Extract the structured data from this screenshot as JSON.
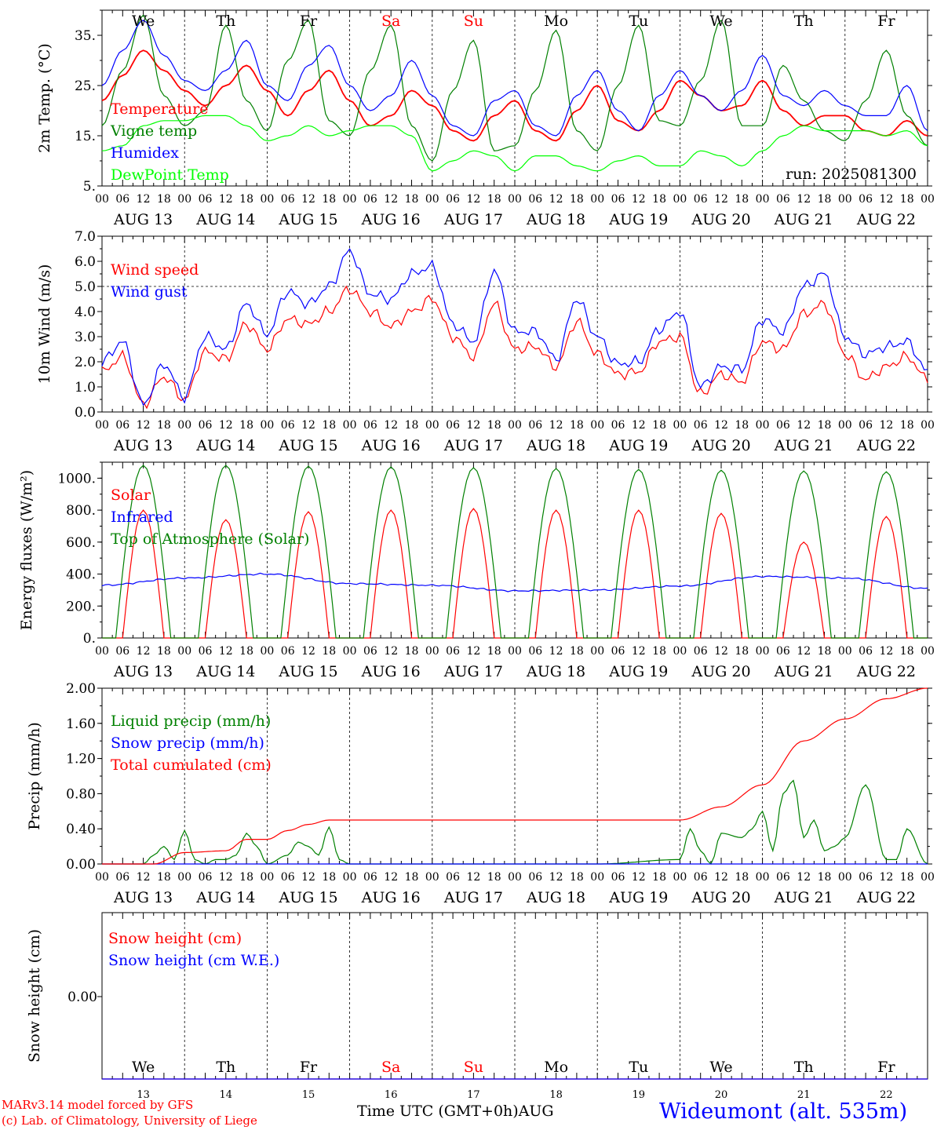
{
  "chart_data": [
    {
      "type": "line",
      "ylabel": "2m Temp. (°C)",
      "ylim": [
        5,
        40
      ],
      "yticks": [
        "5.",
        "15.",
        "25.",
        "35."
      ],
      "grid": "vertical dashed day lines",
      "legend": "left, inside plot",
      "annotation": "run: 2025081300",
      "x": [
        0,
        6,
        12,
        18,
        24,
        30,
        36,
        42,
        48,
        54,
        60,
        66,
        72,
        78,
        84,
        90,
        96,
        102,
        108,
        114,
        120,
        126,
        132,
        138,
        144,
        150,
        156,
        162,
        168,
        174,
        180,
        186,
        192,
        198,
        204,
        210,
        216,
        222,
        228,
        234,
        240
      ],
      "series": [
        {
          "name": "Temperature",
          "color": "#ff0000",
          "values": [
            22,
            27,
            32,
            28,
            24,
            21,
            25,
            29,
            24,
            19,
            24,
            28,
            22,
            17,
            19,
            24,
            21,
            16,
            14,
            19,
            22,
            16,
            14,
            20,
            25,
            18,
            16,
            20,
            26,
            23,
            20,
            21,
            26,
            20,
            17,
            19,
            19,
            16,
            15,
            18,
            15
          ]
        },
        {
          "name": "Vigne temp",
          "color": "#008000",
          "values": [
            17,
            28,
            39,
            23,
            17,
            20,
            37,
            22,
            16,
            30,
            38,
            18,
            15,
            28,
            37,
            17,
            10,
            24,
            34,
            12,
            13,
            24,
            36,
            16,
            12,
            25,
            37,
            18,
            17,
            26,
            38,
            17,
            17,
            29,
            22,
            16,
            14,
            22,
            32,
            19,
            13
          ]
        },
        {
          "name": "Humidex",
          "color": "#0000ff",
          "values": [
            25,
            32,
            38,
            31,
            26,
            24,
            28,
            34,
            25,
            22,
            29,
            33,
            25,
            20,
            23,
            30,
            23,
            17,
            15,
            22,
            24,
            17,
            15,
            23,
            28,
            20,
            16,
            23,
            28,
            23,
            20,
            24,
            31,
            23,
            21,
            24,
            21,
            19,
            19,
            25,
            16
          ]
        },
        {
          "name": "DewPoint Temp",
          "color": "#00ff00",
          "values": [
            12,
            13,
            17,
            18,
            18,
            19,
            19,
            17,
            14,
            15,
            17,
            15,
            16,
            17,
            17,
            15,
            8,
            10,
            12,
            11,
            8,
            11,
            11,
            9,
            8,
            10,
            11,
            9,
            9,
            12,
            11,
            9,
            12,
            15,
            17,
            16,
            16,
            16,
            15,
            16,
            13
          ]
        }
      ]
    },
    {
      "type": "line",
      "ylabel": "10m Wind (m/s)",
      "ylim": [
        0,
        7
      ],
      "yticks": [
        "0.0",
        "1.0",
        "2.0",
        "3.0",
        "4.0",
        "5.0",
        "6.0",
        "7.0"
      ],
      "reference_line": 5.0,
      "legend": "left, inside plot",
      "x": [
        0,
        6,
        12,
        18,
        24,
        30,
        36,
        42,
        48,
        54,
        60,
        66,
        72,
        78,
        84,
        90,
        96,
        102,
        108,
        114,
        120,
        126,
        132,
        138,
        144,
        150,
        156,
        162,
        168,
        174,
        180,
        186,
        192,
        198,
        204,
        210,
        216,
        222,
        228,
        234,
        240
      ],
      "series": [
        {
          "name": "Wind speed",
          "color": "#ff0000",
          "values": [
            1.6,
            2.2,
            0.3,
            1.4,
            0.5,
            2.4,
            2.1,
            3.5,
            2.5,
            3.7,
            3.5,
            4.0,
            4.9,
            4.0,
            3.4,
            4.0,
            4.5,
            3.0,
            2.2,
            4.3,
            2.5,
            2.6,
            1.8,
            3.6,
            2.3,
            1.5,
            1.6,
            2.8,
            3.0,
            0.7,
            1.5,
            1.2,
            2.8,
            2.5,
            3.9,
            4.3,
            2.3,
            1.3,
            1.8,
            2.2,
            1.3
          ]
        },
        {
          "name": "Wind gust",
          "color": "#0000ff",
          "values": [
            2.0,
            2.8,
            0.3,
            1.9,
            0.6,
            3.0,
            2.5,
            4.3,
            3.1,
            4.8,
            4.3,
            5.0,
            6.4,
            4.7,
            4.5,
            5.5,
            5.8,
            3.5,
            2.8,
            5.6,
            3.2,
            3.2,
            2.1,
            4.5,
            3.0,
            1.9,
            2.0,
            3.3,
            4.0,
            1.0,
            1.8,
            1.7,
            3.7,
            3.2,
            5.0,
            5.5,
            3.0,
            2.3,
            2.6,
            2.8,
            1.6
          ]
        }
      ]
    },
    {
      "type": "line",
      "ylabel": "Energy fluxes (W/m²)",
      "ylim": [
        0,
        1100
      ],
      "yticks": [
        "0.",
        "200.",
        "400.",
        "600.",
        "800.",
        "1000."
      ],
      "legend": "left, inside plot",
      "series": [
        {
          "name": "Solar",
          "color": "#ff0000",
          "daily_peak": [
            800,
            740,
            790,
            800,
            810,
            800,
            800,
            780,
            600,
            760
          ]
        },
        {
          "name": "Infrared",
          "color": "#0000ff",
          "x": [
            0,
            24,
            48,
            72,
            96,
            120,
            144,
            168,
            192,
            216,
            240
          ],
          "values": [
            330,
            375,
            400,
            340,
            330,
            295,
            300,
            325,
            385,
            375,
            310
          ]
        },
        {
          "name": "Top of Atmosphere (Solar)",
          "color": "#008000",
          "daily_peak": [
            1080,
            1080,
            1075,
            1070,
            1065,
            1060,
            1055,
            1050,
            1045,
            1040
          ]
        }
      ]
    },
    {
      "type": "line",
      "ylabel": "Precip (mm/h)",
      "ylim": [
        0,
        2
      ],
      "yticks": [
        "0.00",
        "0.40",
        "0.80",
        "1.20",
        "1.60",
        "2.00"
      ],
      "legend": "left, inside plot",
      "series": [
        {
          "name": "Liquid precip (mm/h)",
          "color": "#008000",
          "x": [
            0,
            12,
            15,
            18,
            21,
            24,
            27,
            30,
            33,
            36,
            39,
            42,
            45,
            48,
            54,
            57,
            60,
            63,
            66,
            69,
            72,
            144,
            168,
            171,
            174,
            177,
            180,
            186,
            189,
            192,
            195,
            198,
            201,
            204,
            207,
            210,
            213,
            216,
            222,
            228,
            231,
            234,
            240
          ],
          "values": [
            0,
            0,
            0.1,
            0.2,
            0.05,
            0.38,
            0.05,
            0,
            0.05,
            0.05,
            0.1,
            0.35,
            0.2,
            0,
            0.1,
            0.25,
            0.2,
            0.1,
            0.42,
            0.05,
            0,
            0,
            0.05,
            0.4,
            0.15,
            0,
            0.35,
            0.3,
            0.4,
            0.6,
            0.15,
            0.8,
            0.95,
            0.3,
            0.5,
            0.15,
            0.2,
            0.3,
            0.9,
            0.05,
            0.05,
            0.4,
            0
          ]
        },
        {
          "name": "Snow precip (mm/h)",
          "color": "#0000ff",
          "x": [
            0,
            240
          ],
          "values": [
            0,
            0
          ]
        },
        {
          "name": "Total cumulated (cm)",
          "color": "#ff0000",
          "x": [
            0,
            15,
            24,
            36,
            42,
            48,
            54,
            60,
            66,
            72,
            168,
            180,
            192,
            204,
            216,
            228,
            240
          ],
          "values": [
            0,
            0,
            0.13,
            0.15,
            0.28,
            0.28,
            0.38,
            0.45,
            0.5,
            0.5,
            0.5,
            0.65,
            0.9,
            1.4,
            1.65,
            1.88,
            2.0
          ]
        }
      ]
    },
    {
      "type": "line",
      "ylabel": "Snow height (cm)",
      "yticks": [
        "0.00"
      ],
      "legend": "left, inside plot",
      "series": [
        {
          "name": "Snow height (cm)",
          "color": "#ff0000",
          "x": [
            0,
            240
          ],
          "values": [
            0,
            0
          ]
        },
        {
          "name": "Snow height (cm W.E.)",
          "color": "#0000ff",
          "x": [
            0,
            240
          ],
          "values": [
            0,
            0
          ]
        }
      ]
    }
  ],
  "days": {
    "weekday": [
      "We",
      "Th",
      "Fr",
      "Sa",
      "Su",
      "Mo",
      "Tu",
      "We",
      "Th",
      "Fr"
    ],
    "weekend": [
      false,
      false,
      false,
      true,
      true,
      false,
      false,
      false,
      false,
      false
    ],
    "dates": [
      "AUG 13",
      "AUG 14",
      "AUG 15",
      "AUG 16",
      "AUG 17",
      "AUG 18",
      "AUG 19",
      "AUG 20",
      "AUG 21",
      "AUG 22"
    ],
    "day_numbers": [
      "13",
      "14",
      "15",
      "16",
      "17",
      "18",
      "19",
      "20",
      "21",
      "22"
    ]
  },
  "hour_ticks": [
    "00",
    "06",
    "12",
    "18"
  ],
  "footer": {
    "credit1": "MARv3.14 model forced by GFS",
    "credit2": "(c) Lab. of Climatology, University of Liege",
    "time_label": "Time UTC (GMT+0h)AUG",
    "station": "Wideumont (alt. 535m)"
  },
  "colors": {
    "weekend": "#ff0000",
    "text": "#000000"
  }
}
